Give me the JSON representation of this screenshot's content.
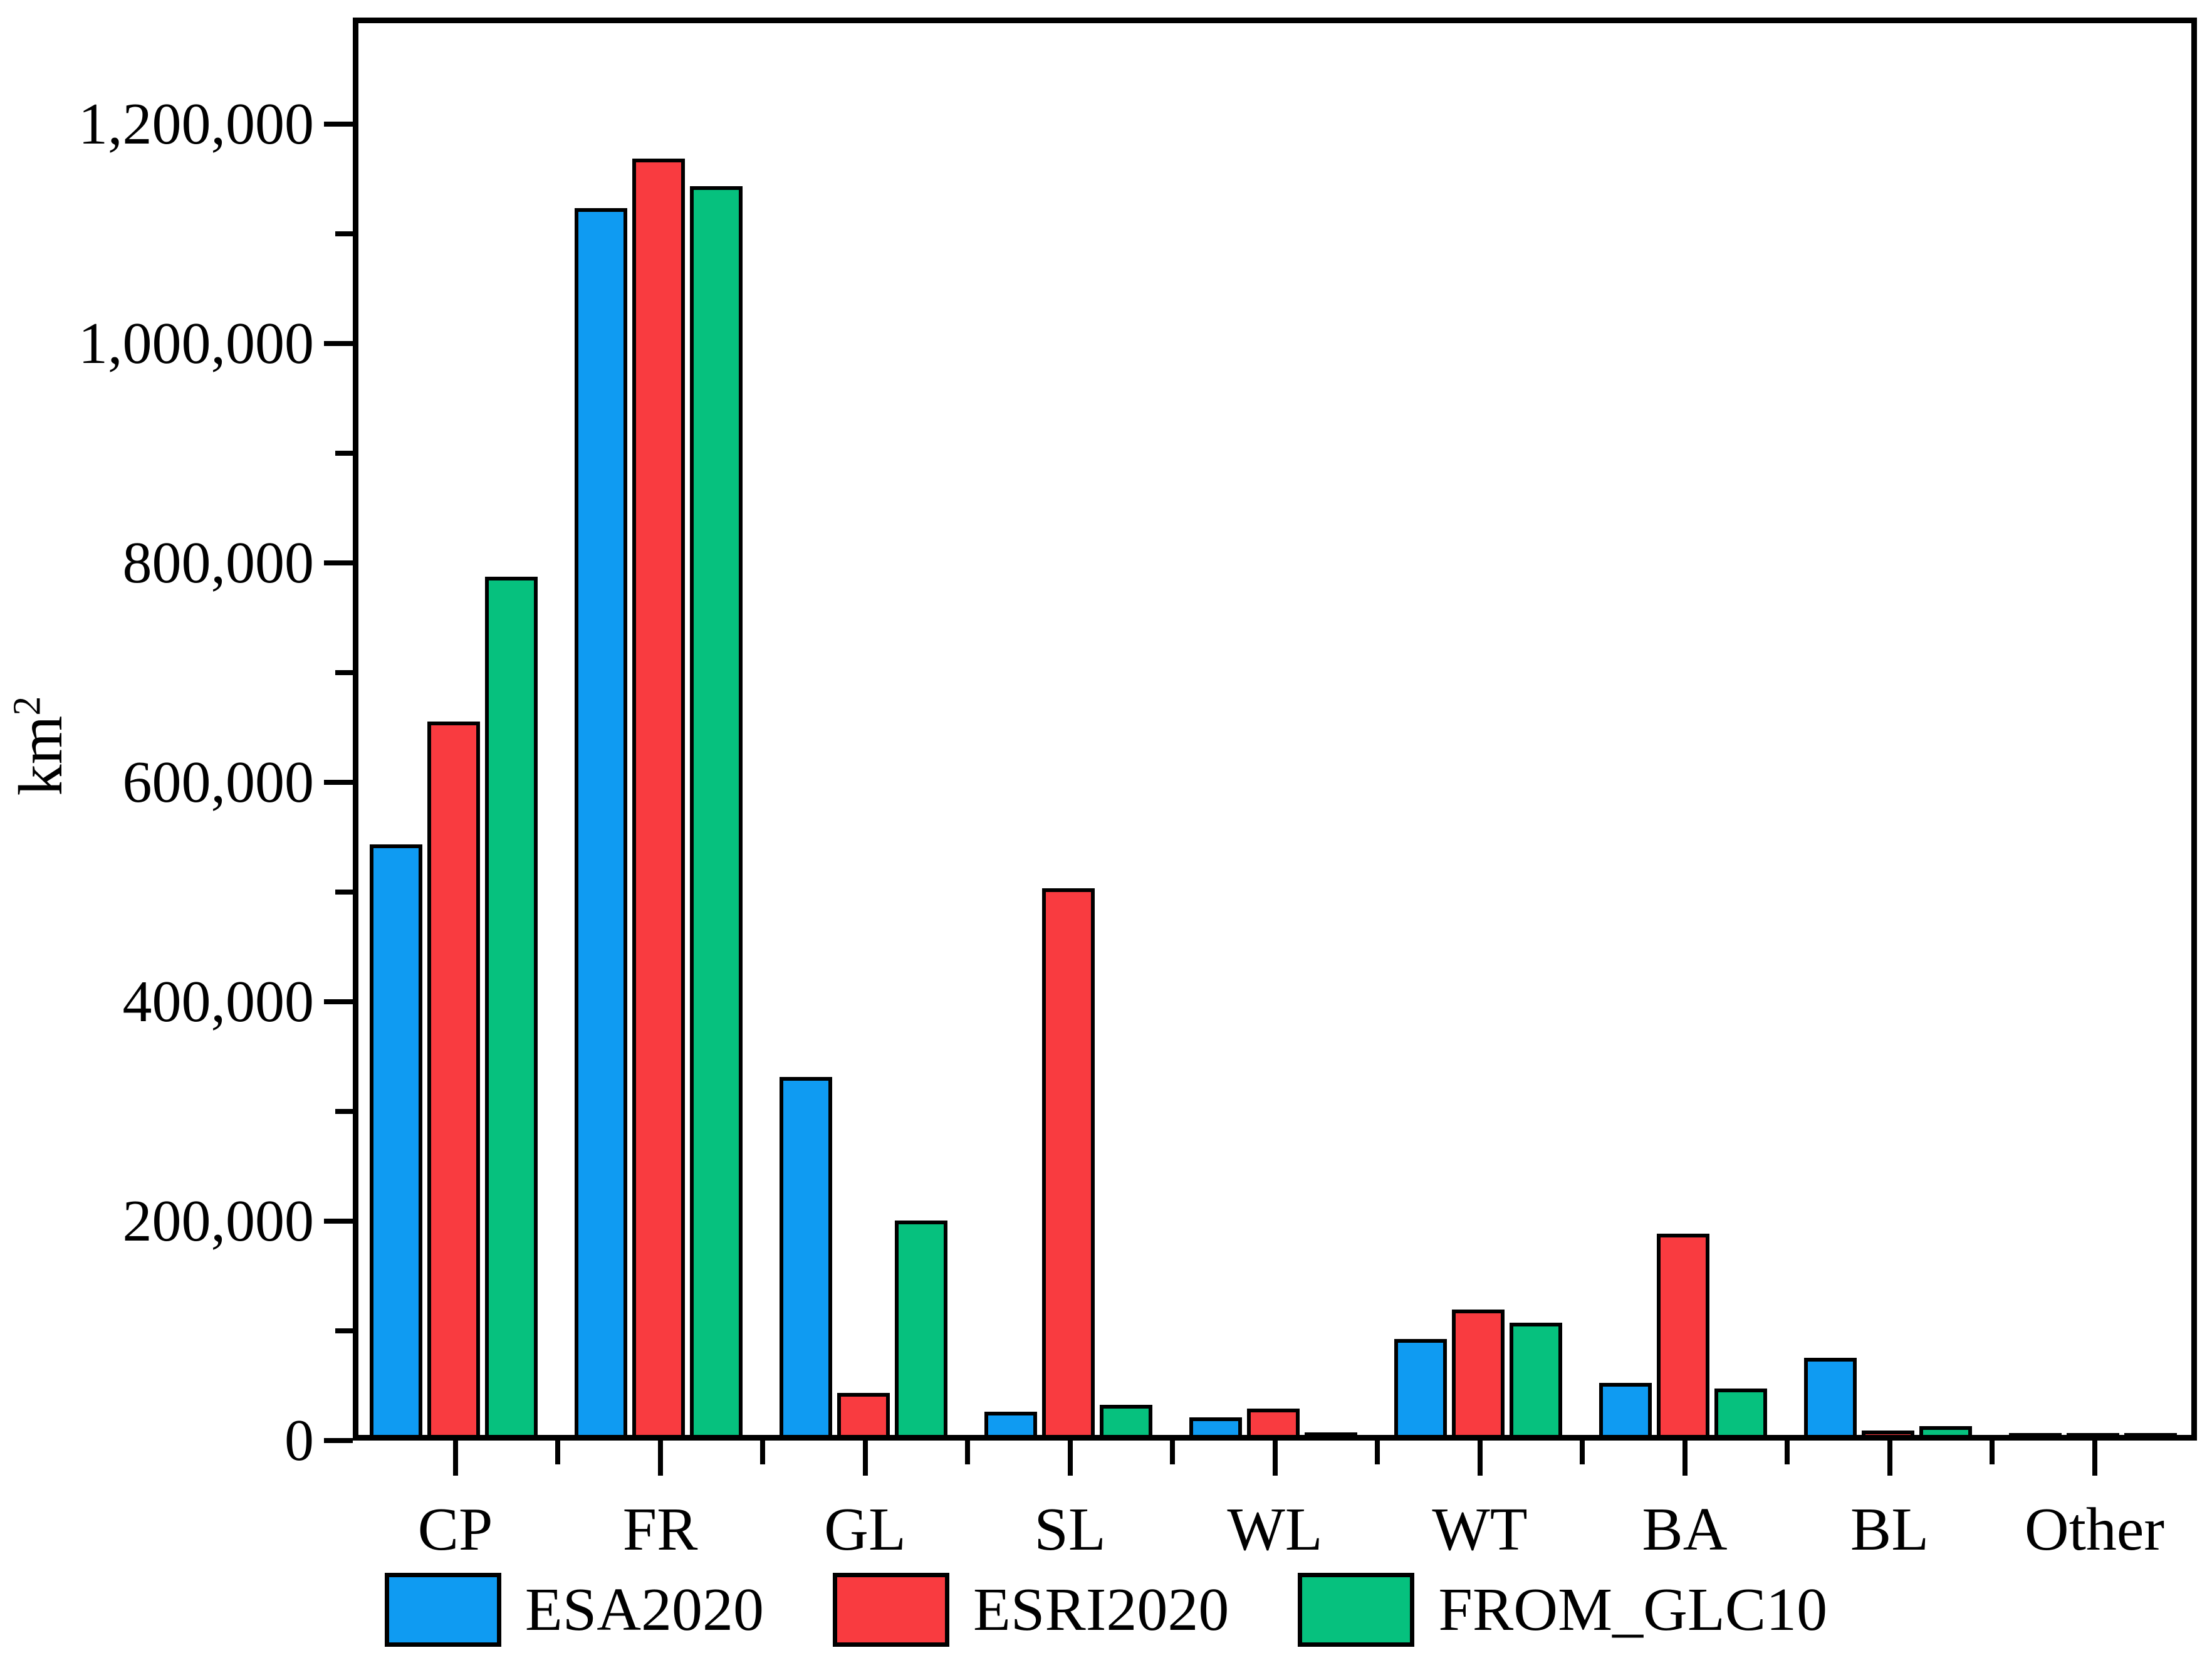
{
  "chart_data": {
    "type": "bar",
    "title": "",
    "xlabel": "",
    "ylabel_base": "km",
    "ylabel_exponent": "2",
    "categories": [
      "CP",
      "FR",
      "GL",
      "SL",
      "WL",
      "WT",
      "BA",
      "BL",
      "Other"
    ],
    "series": [
      {
        "name": "ESA2020",
        "color": "#0F9BF2",
        "values": [
          540000,
          1120000,
          328000,
          23000,
          18000,
          89000,
          49000,
          72000,
          1500
        ]
      },
      {
        "name": "ESRI2020",
        "color": "#F93B40",
        "values": [
          652000,
          1165000,
          40000,
          500000,
          26000,
          116000,
          185000,
          6000,
          1200
        ]
      },
      {
        "name": "FROM_GLC10",
        "color": "#06C17E",
        "values": [
          784000,
          1140000,
          197000,
          29000,
          4000,
          104000,
          44000,
          10000,
          1200
        ]
      }
    ],
    "y_axis": {
      "min": 0,
      "max": 1294000,
      "major_step": 200000,
      "minor_step": 100000,
      "tick_labels": [
        "0",
        "200,000",
        "400,000",
        "600,000",
        "800,000",
        "1,000,000",
        "1,200,000"
      ]
    },
    "grid": "off",
    "legend_position": "bottom"
  },
  "legend": {
    "items": [
      {
        "label": "ESA2020"
      },
      {
        "label": "ESRI2020"
      },
      {
        "label": "FROM_GLC10"
      }
    ]
  }
}
